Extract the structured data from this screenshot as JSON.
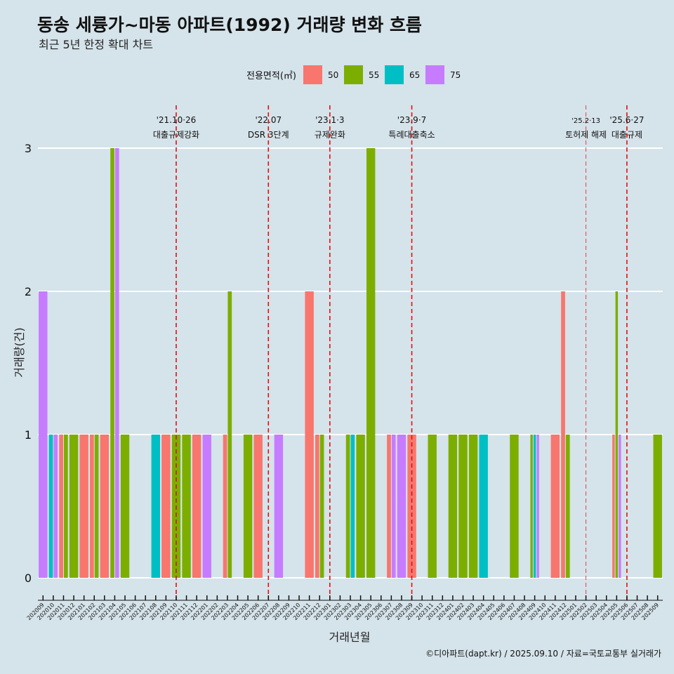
{
  "title": "동송 세륭가~마동 아파트(1992) 거래량 변화 흐름",
  "subtitle": "최근 5년 한정 확대 차트",
  "caption": "©디아파트(dapt.kr) / 2025.09.10 / 자료=국토교통부 실거래가",
  "colors": {
    "background": "#d5e3ea",
    "50": "#f8766d",
    "55": "#7cae00",
    "65": "#00bfc4",
    "75": "#c77cff",
    "event_line": "#e01010"
  },
  "chart_data": {
    "type": "bar",
    "xlabel": "거래년월",
    "ylabel": "거래량(건)",
    "ylim": [
      0,
      3
    ],
    "yticks": [
      0,
      1,
      2,
      3
    ],
    "grid": true,
    "legend": {
      "title": "전용면적(㎡)",
      "position": "top",
      "entries": [
        "50",
        "55",
        "65",
        "75"
      ]
    },
    "categories": [
      "202009",
      "202010",
      "202011",
      "202012",
      "202101",
      "202102",
      "202103",
      "202104",
      "202105",
      "202106",
      "202107",
      "202108",
      "202109",
      "202110",
      "202111",
      "202112",
      "202201",
      "202202",
      "202203",
      "202204",
      "202205",
      "202206",
      "202207",
      "202208",
      "202209",
      "202210",
      "202211",
      "202212",
      "202301",
      "202302",
      "202303",
      "202304",
      "202305",
      "202306",
      "202307",
      "202308",
      "202309",
      "202310",
      "202311",
      "202312",
      "202401",
      "202402",
      "202403",
      "202404",
      "202405",
      "202406",
      "202407",
      "202408",
      "202409",
      "202410",
      "202411",
      "202412",
      "202501",
      "202502",
      "202503",
      "202504",
      "202505",
      "202506",
      "202507",
      "202508",
      "202509"
    ],
    "series": [
      {
        "name": "50",
        "values": [
          0,
          0,
          1,
          0,
          1,
          1,
          1,
          0,
          0,
          0,
          0,
          0,
          1,
          0,
          0,
          1,
          0,
          0,
          1,
          0,
          0,
          1,
          0,
          0,
          0,
          0,
          2,
          1,
          0,
          0,
          0,
          0,
          0,
          0,
          1,
          0,
          1,
          0,
          0,
          0,
          0,
          0,
          0,
          0,
          0,
          0,
          0,
          0,
          0,
          0,
          1,
          2,
          0,
          0,
          0,
          0,
          1,
          0,
          0,
          0,
          0
        ]
      },
      {
        "name": "55",
        "values": [
          0,
          0,
          1,
          1,
          0,
          1,
          0,
          3,
          1,
          0,
          0,
          0,
          0,
          1,
          1,
          0,
          0,
          0,
          2,
          0,
          1,
          0,
          0,
          0,
          0,
          0,
          0,
          1,
          0,
          0,
          1,
          1,
          3,
          0,
          0,
          0,
          0,
          0,
          1,
          0,
          1,
          1,
          1,
          0,
          0,
          0,
          1,
          0,
          1,
          0,
          0,
          1,
          0,
          0,
          0,
          0,
          2,
          0,
          0,
          0,
          1
        ]
      },
      {
        "name": "65",
        "values": [
          0,
          1,
          0,
          0,
          0,
          0,
          0,
          0,
          0,
          0,
          0,
          1,
          0,
          0,
          0,
          0,
          0,
          0,
          0,
          0,
          0,
          0,
          0,
          0,
          0,
          0,
          0,
          0,
          0,
          0,
          1,
          0,
          0,
          0,
          0,
          0,
          0,
          0,
          0,
          0,
          0,
          0,
          0,
          1,
          0,
          0,
          0,
          0,
          1,
          0,
          0,
          0,
          0,
          0,
          0,
          0,
          0,
          0,
          0,
          0,
          0
        ]
      },
      {
        "name": "75",
        "values": [
          2,
          1,
          0,
          0,
          0,
          0,
          0,
          3,
          0,
          0,
          0,
          0,
          0,
          0,
          0,
          0,
          1,
          0,
          0,
          0,
          0,
          0,
          0,
          1,
          0,
          0,
          0,
          0,
          0,
          0,
          0,
          0,
          0,
          0,
          1,
          1,
          0,
          0,
          0,
          0,
          0,
          0,
          0,
          0,
          0,
          0,
          0,
          0,
          1,
          0,
          0,
          0,
          0,
          0,
          0,
          0,
          1,
          0,
          0,
          0,
          0
        ]
      }
    ],
    "events": [
      {
        "date": "'21.10·26",
        "label": "대출규제강화",
        "at": "202110"
      },
      {
        "date": "'22.07",
        "label": "DSR 3단계",
        "at": "202207"
      },
      {
        "date": "'23.1·3",
        "label": "규제완화",
        "at": "202301"
      },
      {
        "date": "'23.9·7",
        "label": "특례대출축소",
        "at": "202309"
      },
      {
        "date": "'25.2·13",
        "label": "토허제 해제",
        "at": "202502"
      },
      {
        "date": "'25.6·27",
        "label": "대출규제",
        "at": "202506"
      }
    ]
  }
}
